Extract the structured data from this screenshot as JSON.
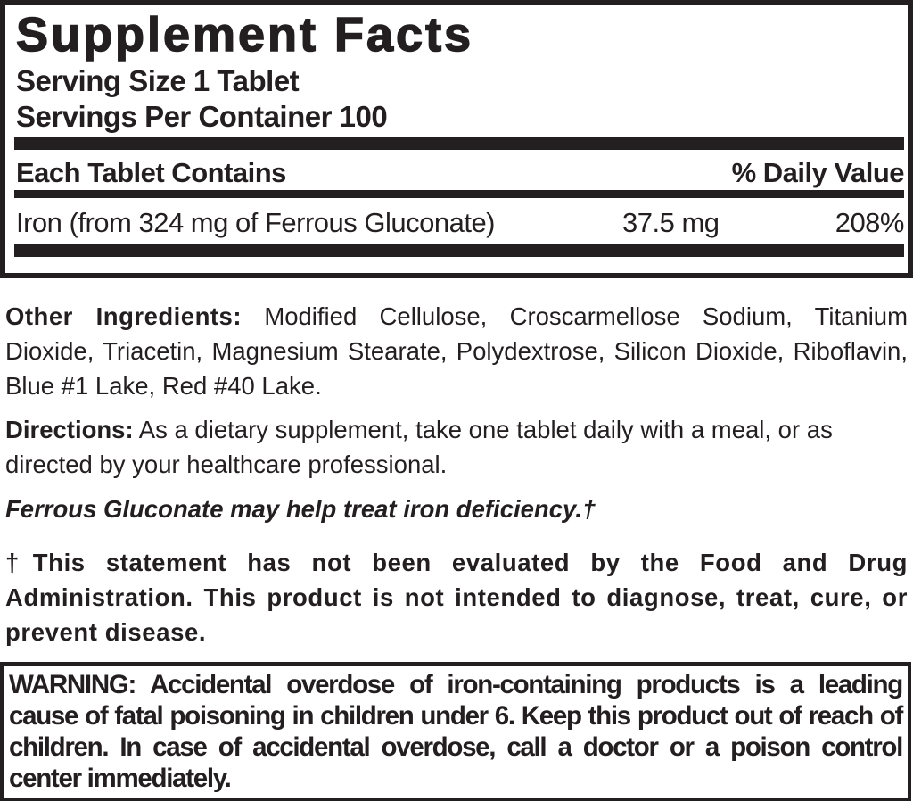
{
  "facts": {
    "title": "Supplement Facts",
    "serving_size": "Serving Size 1 Tablet",
    "servings_per_container": "Servings Per Container 100",
    "header_left": "Each Tablet Contains",
    "header_right": "% Daily Value",
    "rows": [
      {
        "name": "Iron (from 324 mg of Ferrous Gluconate)",
        "amount": "37.5 mg",
        "dv": "208%"
      }
    ]
  },
  "other_ingredients": {
    "label": "Other Ingredients:",
    "text": "Modified Cellulose, Croscarmellose Sodium, Titanium Dioxide, Triacetin, Magnesium Stearate, Polydextrose, Silicon Dioxide, Riboflavin, Blue #1 Lake, Red #40 Lake."
  },
  "directions": {
    "label": "Directions:",
    "text": "As a dietary supplement, take one tablet daily with a meal, or as directed by your healthcare professional."
  },
  "claim": "Ferrous Gluconate may help treat iron deficiency.†",
  "disclaimer": "†This statement has not been evaluated by the Food and Drug Administration. This product is not intended to diagnose, treat, cure, or prevent disease.",
  "warning": "WARNING: Accidental overdose of iron-containing products is a leading cause of fatal poisoning in children under 6. Keep this product out of reach of children. In case of accidental overdose, call a doctor or a poison control center immediately."
}
